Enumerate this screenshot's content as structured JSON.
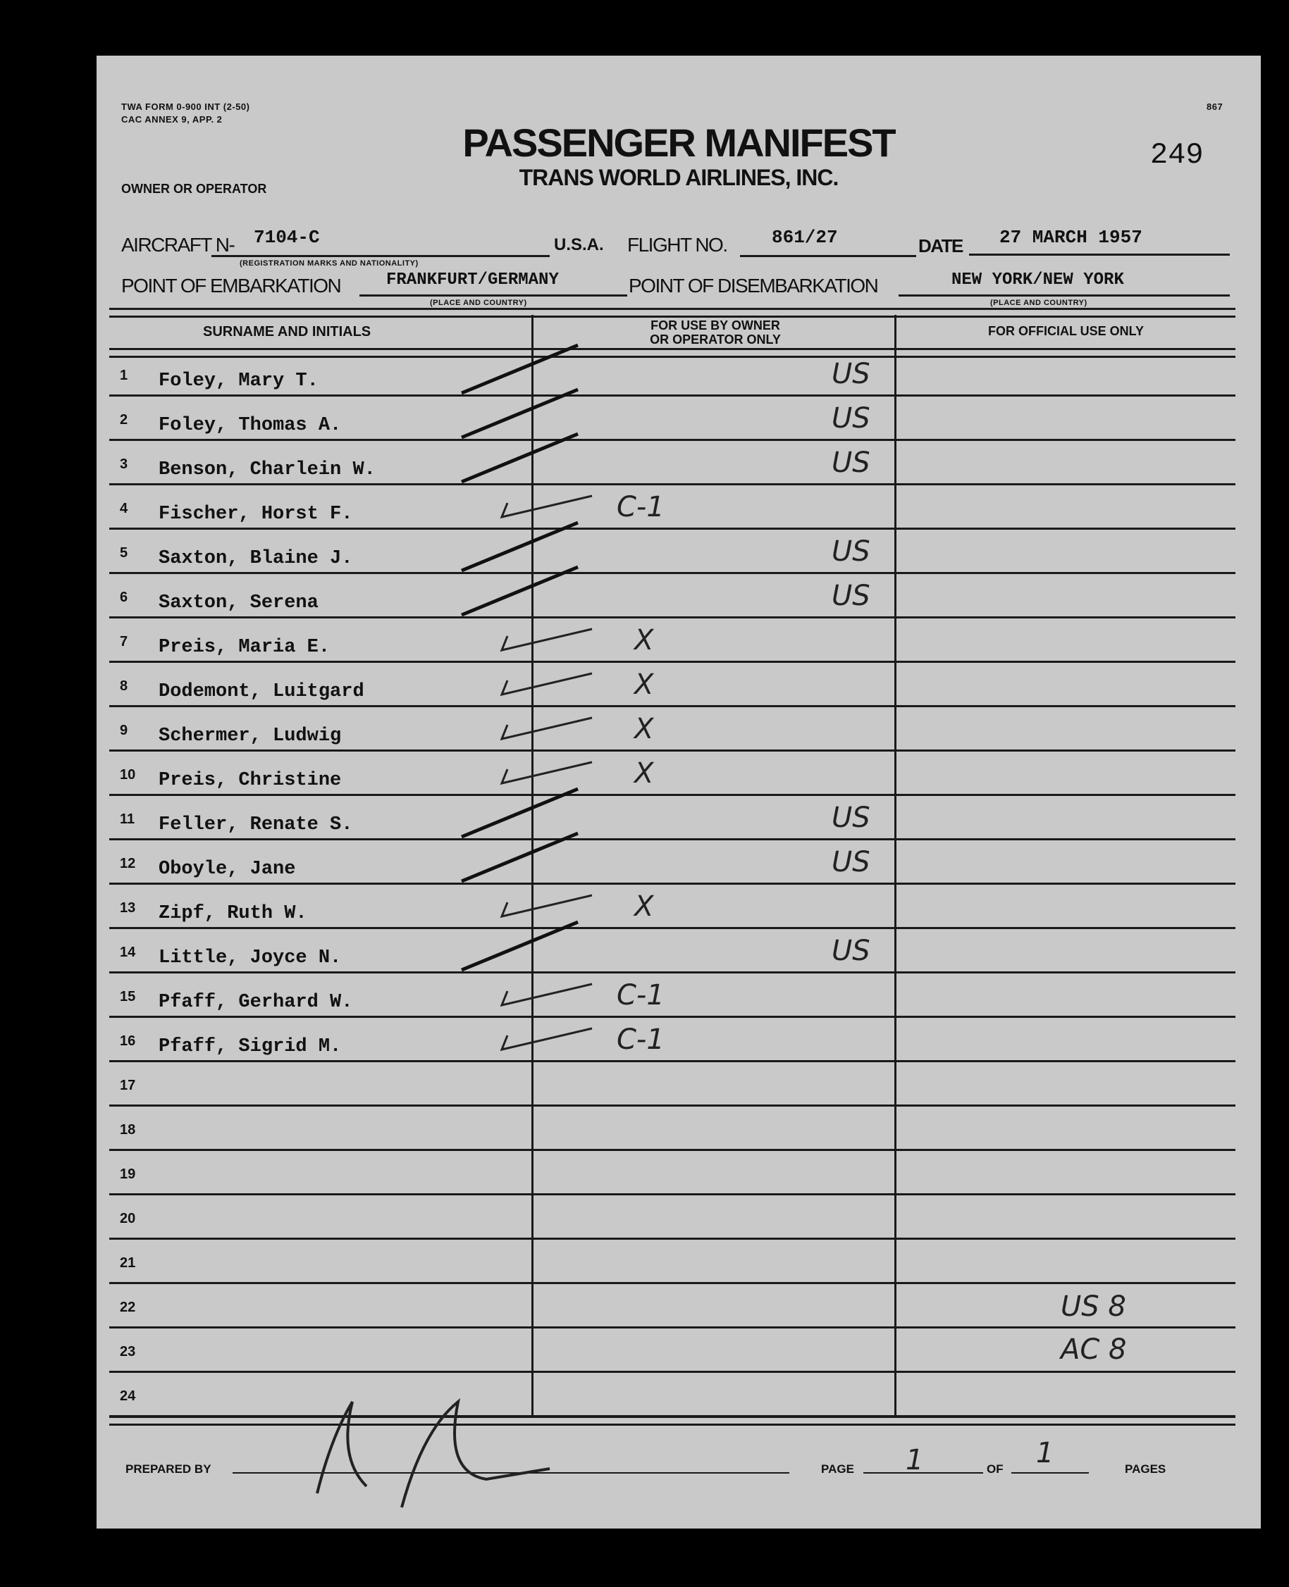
{
  "form": {
    "form_number": "TWA FORM 0-900 INT (2-50)",
    "annex": "CAC ANNEX 9, APP. 2",
    "sheet_number": "867",
    "serial": "249",
    "title": "PASSENGER MANIFEST",
    "subtitle": "TRANS WORLD AIRLINES, INC.",
    "owner_label": "OWNER OR OPERATOR"
  },
  "fields": {
    "aircraft_label": "AIRCRAFT N-",
    "aircraft_value": "7104-C",
    "aircraft_note": "(REGISTRATION MARKS AND NATIONALITY)",
    "flight_prefix": "U.S.A.",
    "flight_label": "FLIGHT NO.",
    "flight_value": "861/27",
    "date_label": "DATE",
    "date_value": "27 MARCH 1957",
    "embark_label": "POINT OF EMBARKATION",
    "embark_value": "FRANKFURT/GERMANY",
    "embark_note": "(PLACE AND COUNTRY)",
    "disembark_label": "POINT OF DISEMBARKATION",
    "disembark_value": "NEW YORK/NEW YORK",
    "disembark_note": "(PLACE AND COUNTRY)"
  },
  "table": {
    "headers": [
      "SURNAME AND INITIALS",
      "FOR USE BY OWNER",
      "OR OPERATOR ONLY",
      "FOR OFFICIAL USE ONLY"
    ],
    "rows": [
      {
        "num": "1",
        "name": "Foley, Mary T.",
        "mark": "US"
      },
      {
        "num": "2",
        "name": "Foley, Thomas A.",
        "mark": "US"
      },
      {
        "num": "3",
        "name": "Benson, Charlein W.",
        "mark": "US"
      },
      {
        "num": "4",
        "name": "Fischer, Horst F.",
        "mark": "C-1"
      },
      {
        "num": "5",
        "name": "Saxton, Blaine J.",
        "mark": "US"
      },
      {
        "num": "6",
        "name": "Saxton, Serena",
        "mark": "US"
      },
      {
        "num": "7",
        "name": "Preis, Maria E.",
        "mark": "X"
      },
      {
        "num": "8",
        "name": "Dodemont, Luitgard",
        "mark": "X"
      },
      {
        "num": "9",
        "name": "Schermer, Ludwig",
        "mark": "X"
      },
      {
        "num": "10",
        "name": "Preis, Christine",
        "mark": "X"
      },
      {
        "num": "11",
        "name": "Feller, Renate S.",
        "mark": "US"
      },
      {
        "num": "12",
        "name": "Oboyle, Jane",
        "mark": "US"
      },
      {
        "num": "13",
        "name": "Zipf, Ruth W.",
        "mark": "X"
      },
      {
        "num": "14",
        "name": "Little, Joyce N.",
        "mark": "US"
      },
      {
        "num": "15",
        "name": "Pfaff, Gerhard W.",
        "mark": "C-1"
      },
      {
        "num": "16",
        "name": "Pfaff, Sigrid M.",
        "mark": "C-1"
      },
      {
        "num": "17",
        "name": "",
        "mark": ""
      },
      {
        "num": "18",
        "name": "",
        "mark": ""
      },
      {
        "num": "19",
        "name": "",
        "mark": ""
      },
      {
        "num": "20",
        "name": "",
        "mark": ""
      },
      {
        "num": "21",
        "name": "",
        "mark": ""
      },
      {
        "num": "22",
        "name": "",
        "mark": ""
      },
      {
        "num": "23",
        "name": "",
        "mark": ""
      },
      {
        "num": "24",
        "name": "",
        "mark": ""
      }
    ],
    "official_tally": [
      "US 8",
      "AC 8"
    ]
  },
  "footer": {
    "prepared_by_label": "PREPARED BY",
    "page_label": "PAGE",
    "page_value": "1",
    "of_label": "OF",
    "total_value": "1",
    "pages_label": "PAGES"
  }
}
